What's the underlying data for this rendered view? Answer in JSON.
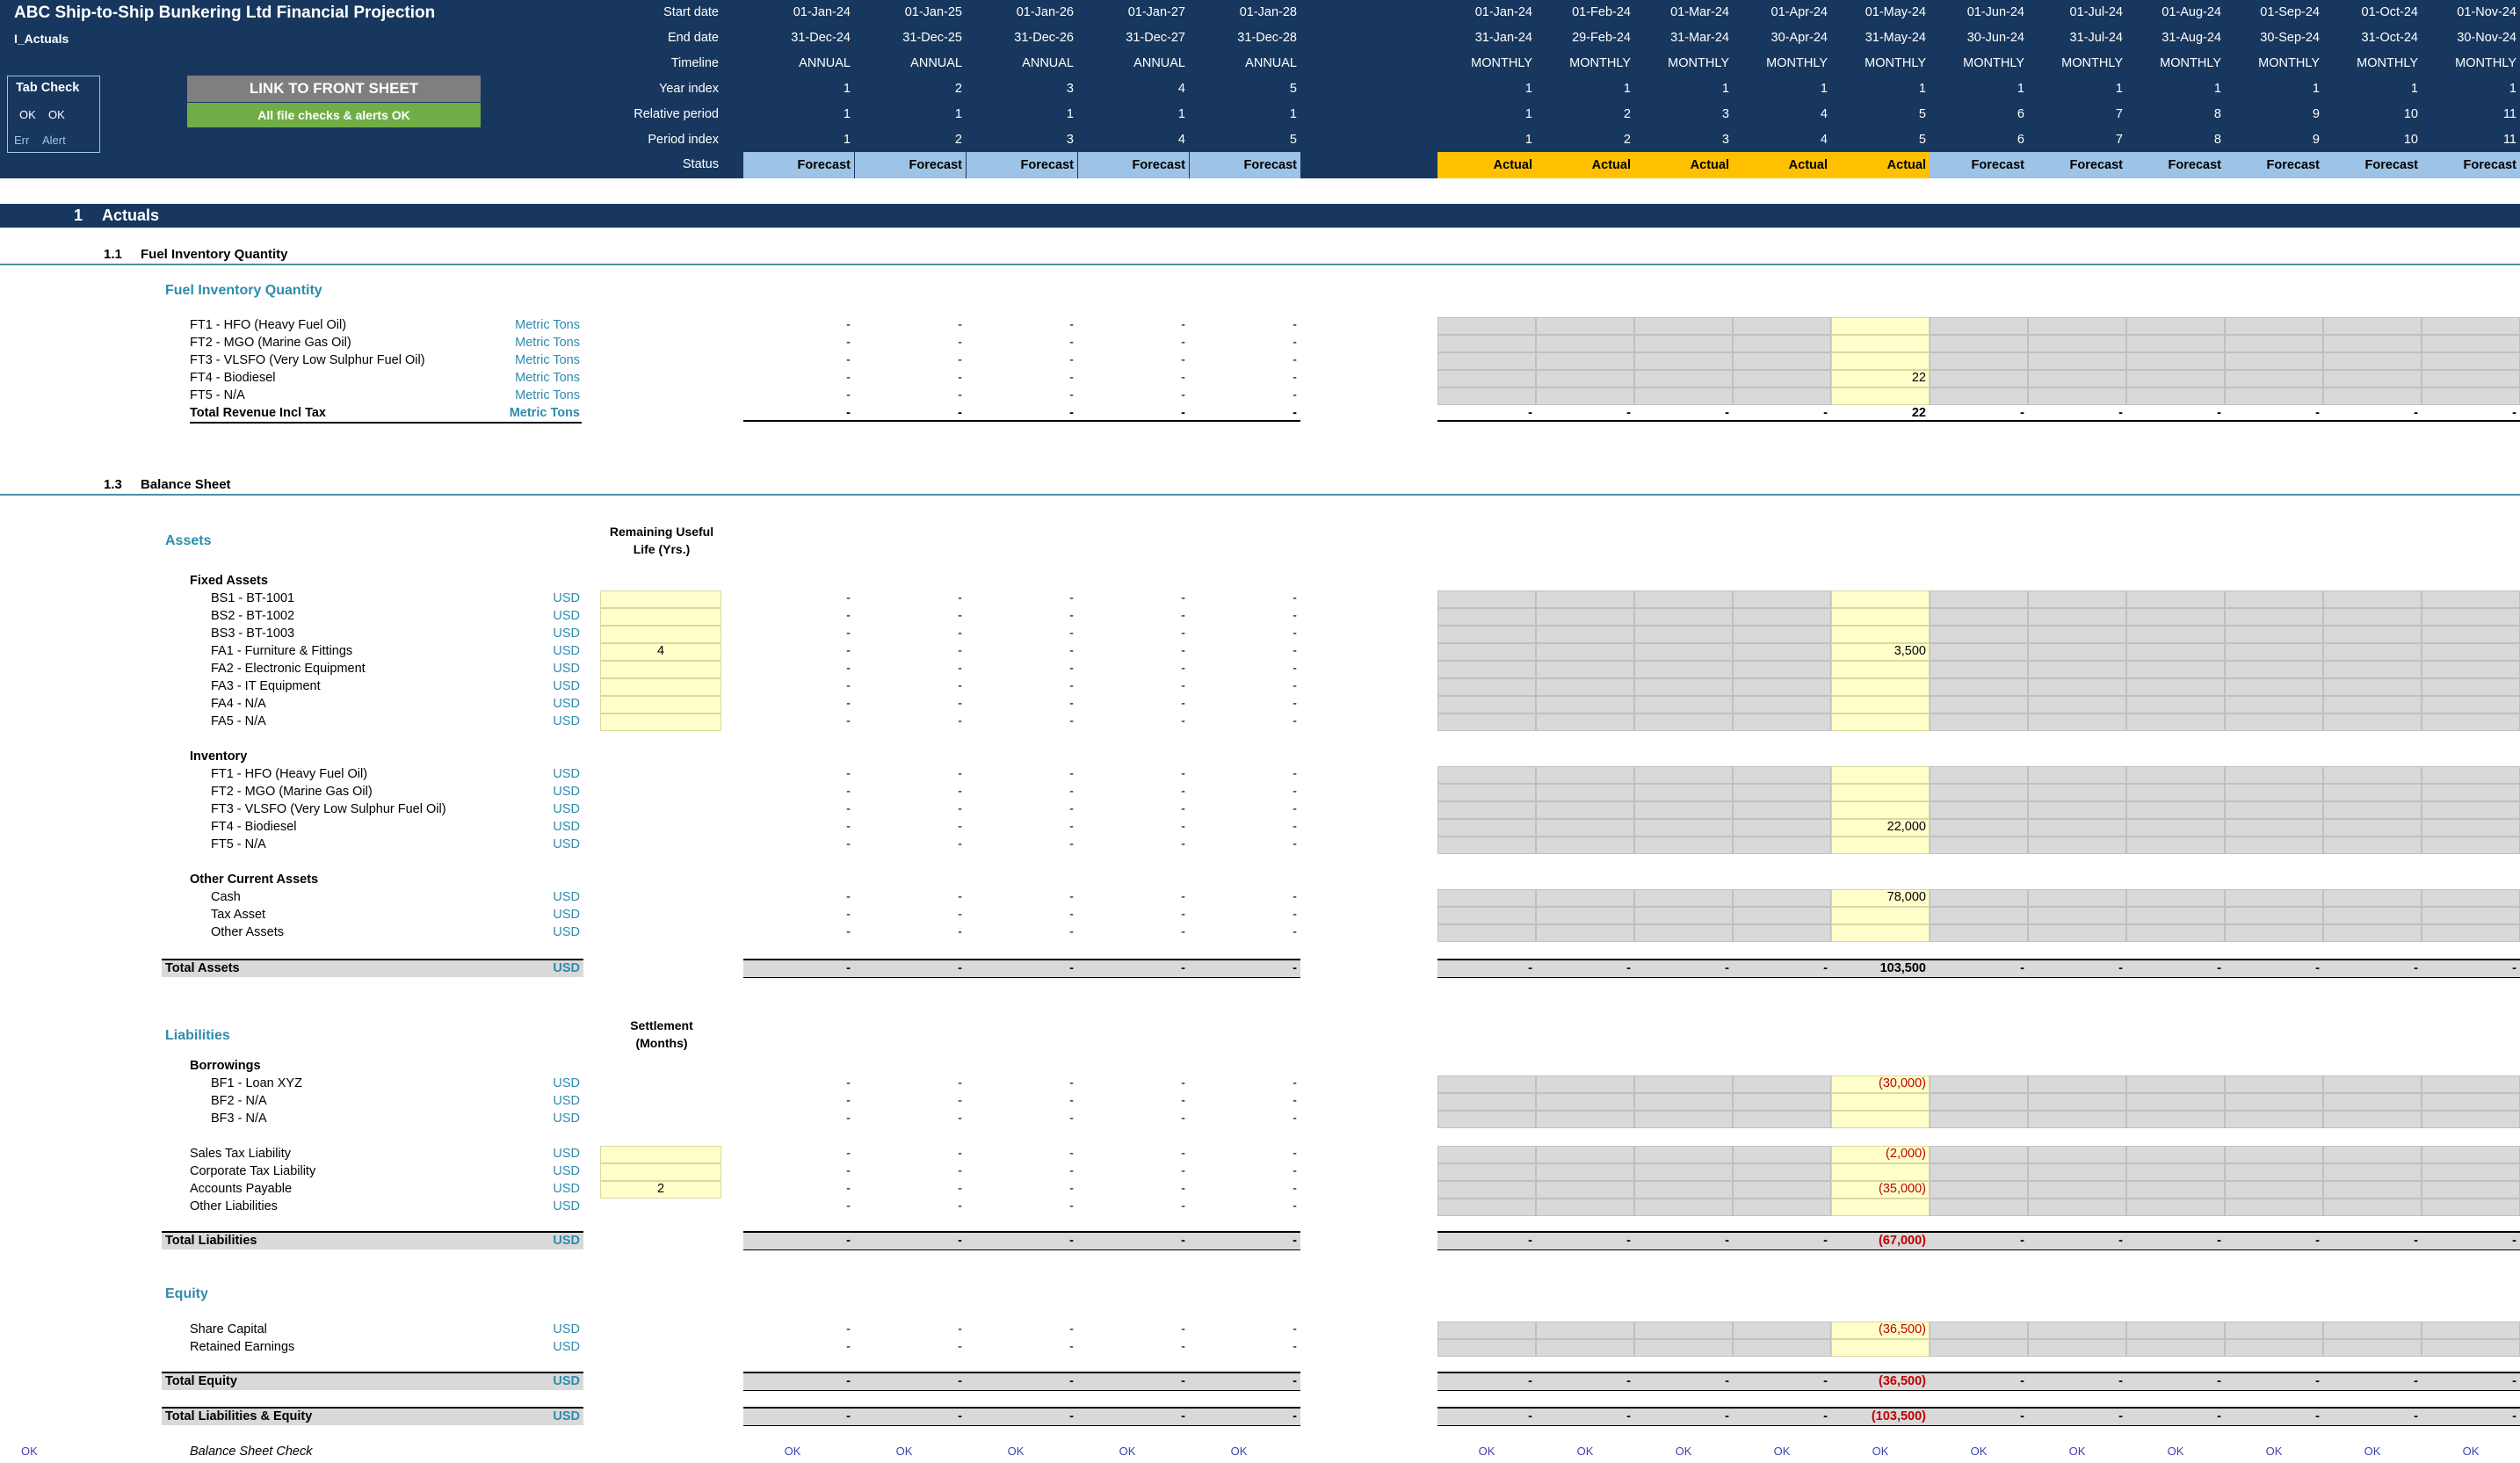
{
  "header": {
    "title": "ABC Ship-to-Ship Bunkering Ltd Financial Projection",
    "sheet": "I_Actuals",
    "row_labels": [
      "Start date",
      "End date",
      "Timeline",
      "Year index",
      "Relative period",
      "Period index",
      "Status"
    ],
    "annual": [
      {
        "start": "01-Jan-24",
        "end": "31-Dec-24",
        "timeline": "ANNUAL",
        "year": "1",
        "rel": "1",
        "idx": "1",
        "status": "Forecast"
      },
      {
        "start": "01-Jan-25",
        "end": "31-Dec-25",
        "timeline": "ANNUAL",
        "year": "2",
        "rel": "1",
        "idx": "2",
        "status": "Forecast"
      },
      {
        "start": "01-Jan-26",
        "end": "31-Dec-26",
        "timeline": "ANNUAL",
        "year": "3",
        "rel": "1",
        "idx": "3",
        "status": "Forecast"
      },
      {
        "start": "01-Jan-27",
        "end": "31-Dec-27",
        "timeline": "ANNUAL",
        "year": "4",
        "rel": "1",
        "idx": "4",
        "status": "Forecast"
      },
      {
        "start": "01-Jan-28",
        "end": "31-Dec-28",
        "timeline": "ANNUAL",
        "year": "5",
        "rel": "1",
        "idx": "5",
        "status": "Forecast"
      }
    ],
    "monthly": [
      {
        "start": "01-Jan-24",
        "end": "31-Jan-24",
        "timeline": "MONTHLY",
        "year": "1",
        "rel": "1",
        "idx": "1",
        "status": "Actual"
      },
      {
        "start": "01-Feb-24",
        "end": "29-Feb-24",
        "timeline": "MONTHLY",
        "year": "1",
        "rel": "2",
        "idx": "2",
        "status": "Actual"
      },
      {
        "start": "01-Mar-24",
        "end": "31-Mar-24",
        "timeline": "MONTHLY",
        "year": "1",
        "rel": "3",
        "idx": "3",
        "status": "Actual"
      },
      {
        "start": "01-Apr-24",
        "end": "30-Apr-24",
        "timeline": "MONTHLY",
        "year": "1",
        "rel": "4",
        "idx": "4",
        "status": "Actual"
      },
      {
        "start": "01-May-24",
        "end": "31-May-24",
        "timeline": "MONTHLY",
        "year": "1",
        "rel": "5",
        "idx": "5",
        "status": "Actual"
      },
      {
        "start": "01-Jun-24",
        "end": "30-Jun-24",
        "timeline": "MONTHLY",
        "year": "1",
        "rel": "6",
        "idx": "6",
        "status": "Forecast"
      },
      {
        "start": "01-Jul-24",
        "end": "31-Jul-24",
        "timeline": "MONTHLY",
        "year": "1",
        "rel": "7",
        "idx": "7",
        "status": "Forecast"
      },
      {
        "start": "01-Aug-24",
        "end": "31-Aug-24",
        "timeline": "MONTHLY",
        "year": "1",
        "rel": "8",
        "idx": "8",
        "status": "Forecast"
      },
      {
        "start": "01-Sep-24",
        "end": "30-Sep-24",
        "timeline": "MONTHLY",
        "year": "1",
        "rel": "9",
        "idx": "9",
        "status": "Forecast"
      },
      {
        "start": "01-Oct-24",
        "end": "31-Oct-24",
        "timeline": "MONTHLY",
        "year": "1",
        "rel": "10",
        "idx": "10",
        "status": "Forecast"
      },
      {
        "start": "01-Nov-24",
        "end": "30-Nov-24",
        "timeline": "MONTHLY",
        "year": "1",
        "rel": "11",
        "idx": "11",
        "status": "Forecast"
      }
    ]
  },
  "tab_check": {
    "title": "Tab Check",
    "ok1": "OK",
    "ok2": "OK",
    "err": "Err",
    "alert": "Alert"
  },
  "buttons": {
    "link": "LINK TO FRONT SHEET",
    "checks": "All file checks & alerts OK"
  },
  "section1": {
    "num": "1",
    "title": "Actuals"
  },
  "s11": {
    "num": "1.1",
    "title": "Fuel Inventory Quantity",
    "group": "Fuel Inventory Quantity",
    "rows": [
      {
        "label": "FT1 - HFO (Heavy Fuel Oil)",
        "unit": "Metric Tons",
        "may": ""
      },
      {
        "label": "FT2 - MGO (Marine Gas Oil)",
        "unit": "Metric Tons",
        "may": ""
      },
      {
        "label": "FT3 - VLSFO (Very Low Sulphur Fuel Oil)",
        "unit": "Metric Tons",
        "may": ""
      },
      {
        "label": "FT4 - Biodiesel",
        "unit": "Metric Tons",
        "may": "22"
      },
      {
        "label": "FT5 - N/A",
        "unit": "Metric Tons",
        "may": ""
      }
    ],
    "total": {
      "label": "Total Revenue Incl Tax",
      "unit": "Metric Tons",
      "may": "22"
    }
  },
  "s13": {
    "num": "1.3",
    "title": "Balance Sheet"
  },
  "assets": {
    "title": "Assets",
    "col_hdr1": "Remaining Useful",
    "col_hdr2": "Life (Yrs.)",
    "fixed_title": "Fixed Assets",
    "fixed": [
      {
        "label": "BS1 - BT-1001",
        "unit": "USD",
        "input": "",
        "may": ""
      },
      {
        "label": "BS2 - BT-1002",
        "unit": "USD",
        "input": "",
        "may": ""
      },
      {
        "label": "BS3 - BT-1003",
        "unit": "USD",
        "input": "",
        "may": ""
      },
      {
        "label": "FA1 - Furniture & Fittings",
        "unit": "USD",
        "input": "4",
        "may": "3,500"
      },
      {
        "label": "FA2 - Electronic Equipment",
        "unit": "USD",
        "input": "",
        "may": ""
      },
      {
        "label": "FA3 - IT Equipment",
        "unit": "USD",
        "input": "",
        "may": ""
      },
      {
        "label": "FA4 - N/A",
        "unit": "USD",
        "input": "",
        "may": ""
      },
      {
        "label": "FA5 - N/A",
        "unit": "USD",
        "input": "",
        "may": ""
      }
    ],
    "inv_title": "Inventory",
    "inv": [
      {
        "label": "FT1 - HFO (Heavy Fuel Oil)",
        "unit": "USD",
        "may": ""
      },
      {
        "label": "FT2 - MGO (Marine Gas Oil)",
        "unit": "USD",
        "may": ""
      },
      {
        "label": "FT3 - VLSFO (Very Low Sulphur Fuel Oil)",
        "unit": "USD",
        "may": ""
      },
      {
        "label": "FT4 - Biodiesel",
        "unit": "USD",
        "may": "22,000"
      },
      {
        "label": "FT5 - N/A",
        "unit": "USD",
        "may": ""
      }
    ],
    "oca_title": "Other Current Assets",
    "oca": [
      {
        "label": "Cash",
        "unit": "USD",
        "may": "78,000"
      },
      {
        "label": "Tax Asset",
        "unit": "USD",
        "may": ""
      },
      {
        "label": "Other Assets",
        "unit": "USD",
        "may": ""
      }
    ],
    "total": {
      "label": "Total Assets",
      "unit": "USD",
      "may": "103,500"
    }
  },
  "liab": {
    "title": "Liabilities",
    "col_hdr1": "Settlement",
    "col_hdr2": "(Months)",
    "borrow_title": "Borrowings",
    "borrow": [
      {
        "label": "BF1 - Loan XYZ",
        "unit": "USD",
        "may": "(30,000)"
      },
      {
        "label": "BF2 - N/A",
        "unit": "USD",
        "may": ""
      },
      {
        "label": "BF3 - N/A",
        "unit": "USD",
        "may": ""
      }
    ],
    "other": [
      {
        "label": "Sales Tax Liability",
        "unit": "USD",
        "input": "",
        "may": "(2,000)"
      },
      {
        "label": "Corporate Tax Liability",
        "unit": "USD",
        "input": "",
        "may": ""
      },
      {
        "label": "Accounts Payable",
        "unit": "USD",
        "input": "2",
        "may": "(35,000)"
      },
      {
        "label": "Other Liabilities",
        "unit": "USD",
        "input": null,
        "may": ""
      }
    ],
    "total": {
      "label": "Total Liabilities",
      "unit": "USD",
      "may": "(67,000)"
    }
  },
  "equity": {
    "title": "Equity",
    "rows": [
      {
        "label": "Share Capital",
        "unit": "USD",
        "may": "(36,500)"
      },
      {
        "label": "Retained Earnings",
        "unit": "USD",
        "may": ""
      }
    ],
    "total": {
      "label": "Total Equity",
      "unit": "USD",
      "may": "(36,500)"
    }
  },
  "tle": {
    "label": "Total Liabilities & Equity",
    "unit": "USD",
    "may": "(103,500)"
  },
  "check": {
    "label": "Balance Sheet Check",
    "left": "OK",
    "value": "OK"
  },
  "dash": "-"
}
